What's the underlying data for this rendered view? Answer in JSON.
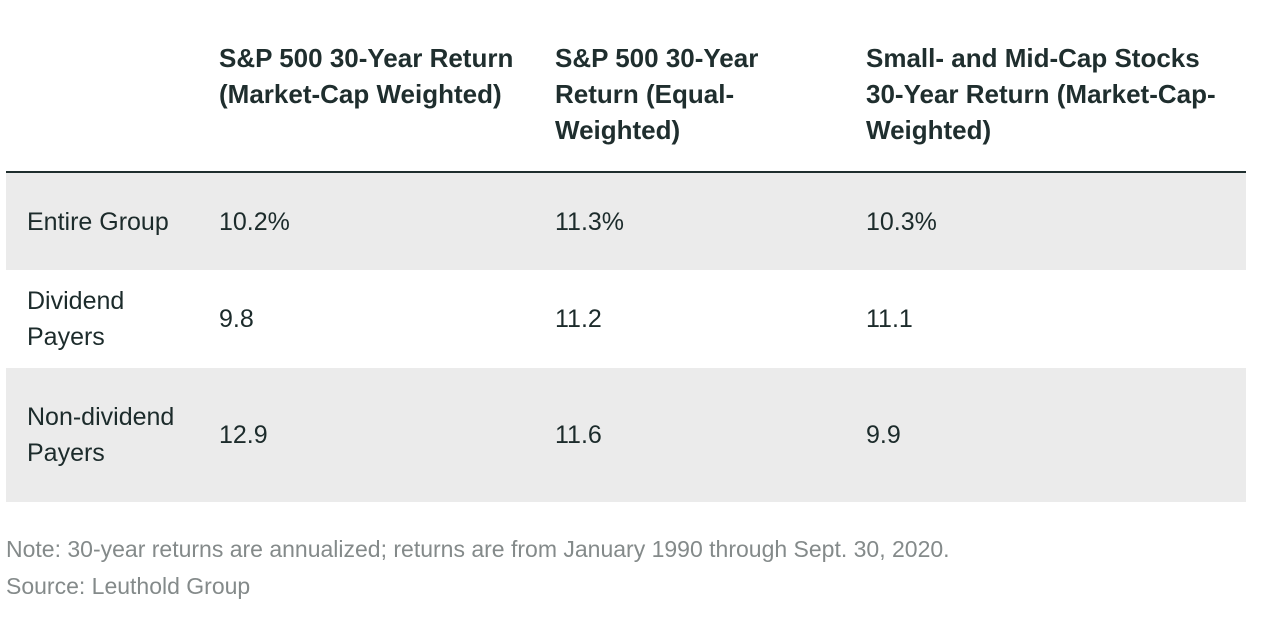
{
  "table": {
    "headers": [
      "",
      "S&P 500 30-Year Return (Market-Cap Weighted)",
      "S&P 500 30-Year Return (Equal-Weighted)",
      "Small- and Mid-Cap Stocks 30-Year Return (Market-Cap-Weighted)"
    ],
    "rows": [
      {
        "label": "Entire Group",
        "values": [
          "10.2%",
          "11.3%",
          "10.3%"
        ]
      },
      {
        "label": "Dividend Payers",
        "values": [
          "9.8",
          "11.2",
          "11.1"
        ]
      },
      {
        "label": "Non-dividend Payers",
        "values": [
          "12.9",
          "11.6",
          "9.9"
        ]
      }
    ]
  },
  "footnotes": {
    "note": "Note: 30-year returns are annualized; returns are from January 1990 through Sept. 30, 2020.",
    "source": "Source: Leuthold Group"
  }
}
